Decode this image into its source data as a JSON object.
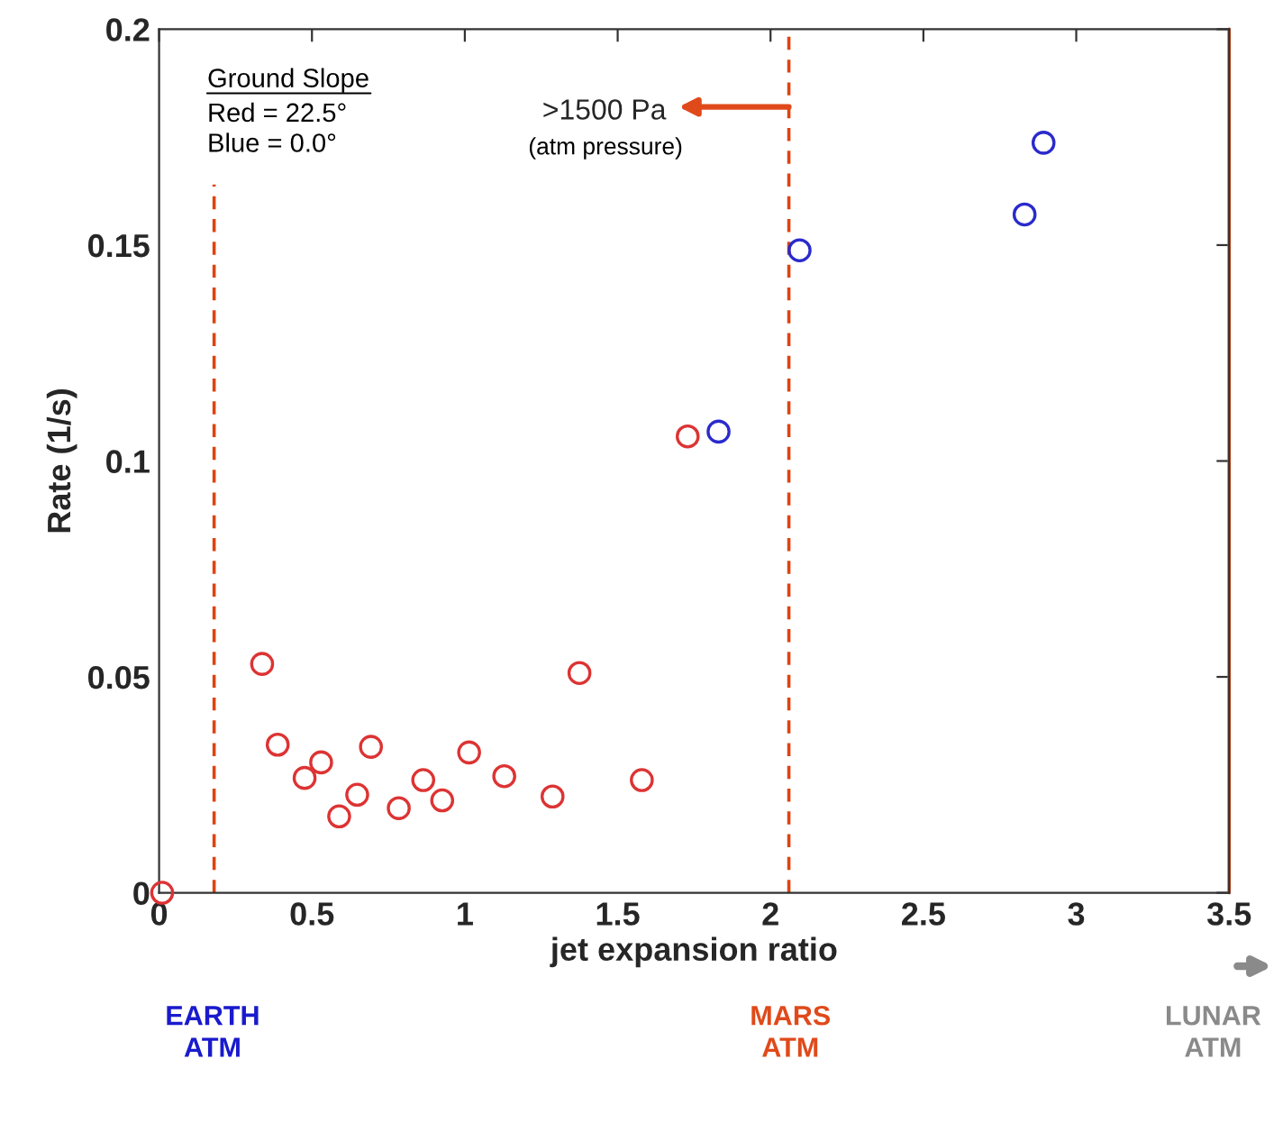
{
  "chart_data": {
    "type": "scatter",
    "xlabel": "jet expansion ratio",
    "ylabel": "Rate (1/s)",
    "series": [
      {
        "color": "#dd3333",
        "x": [
          0.01,
          0.337,
          0.388,
          0.476,
          0.53,
          0.589,
          0.648,
          0.693,
          0.784,
          0.864,
          0.926,
          1.014,
          1.129,
          1.287,
          1.375,
          1.579,
          1.729
        ],
        "values": [
          0,
          0.053,
          0.0343,
          0.0266,
          0.0302,
          0.0177,
          0.0227,
          0.0338,
          0.0196,
          0.0261,
          0.0214,
          0.0325,
          0.027,
          0.0223,
          0.0509,
          0.0261,
          0.1057
        ]
      },
      {
        "color": "#2a2acc",
        "x": [
          1.83,
          2.095,
          2.831,
          2.893
        ],
        "values": [
          0.1068,
          0.1488,
          0.1571,
          0.1737
        ]
      }
    ],
    "xlim": [
      0,
      3.5
    ],
    "ylim": [
      0,
      0.2
    ],
    "xticks": [
      0,
      0.5,
      1,
      1.5,
      2,
      2.5,
      3,
      3.5
    ],
    "yticks": [
      0,
      0.05,
      0.1,
      0.15,
      0.2
    ],
    "marker": "circle",
    "grid": false,
    "ref_lines": [
      {
        "axis": "x",
        "value": 0.18,
        "color": "#dd4411",
        "line_style": "dashed"
      },
      {
        "axis": "x",
        "value": 2.06,
        "color": "#dd4411",
        "line_style": "dashed"
      },
      {
        "axis": "x",
        "value": 3.5,
        "color": "#dd4411",
        "line_style": "solid"
      }
    ],
    "annotations": [
      "Ground Slope",
      "Red = 22.5°\nBlue = 0.0°",
      {
        "text": ">1500 Pa",
        "x": 2.06,
        "y": 0.182
      },
      "(atm pressure)",
      "EARTH\nATM",
      "MARS\nATM",
      "LUNAR\nATM"
    ]
  }
}
